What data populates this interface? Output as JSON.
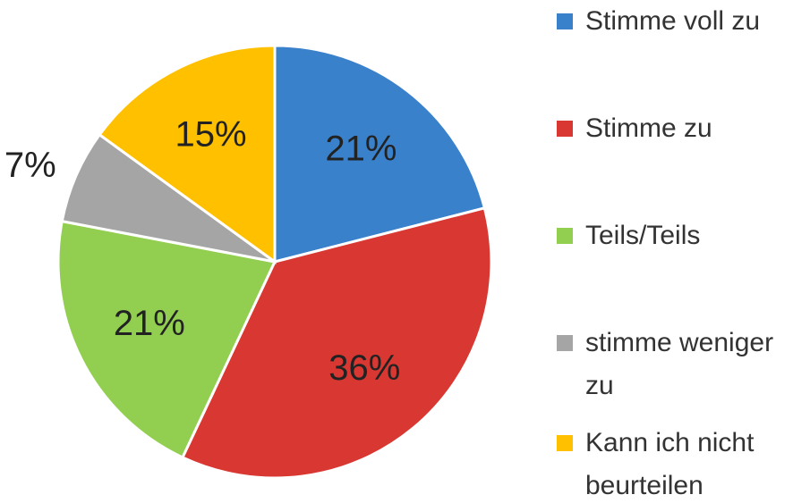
{
  "chart_data": {
    "type": "pie",
    "categories": [
      "Stimme voll zu",
      "Stimme zu",
      "Teils/Teils",
      "stimme weniger zu",
      "Kann ich nicht beurteilen"
    ],
    "values": [
      21,
      36,
      21,
      7,
      15
    ],
    "value_labels": [
      "21%",
      "36%",
      "21%",
      "7%",
      "15%"
    ],
    "colors": [
      "#3a81cc",
      "#d93832",
      "#92cf50",
      "#a5a5a5",
      "#ffc000"
    ],
    "legend": "right"
  }
}
